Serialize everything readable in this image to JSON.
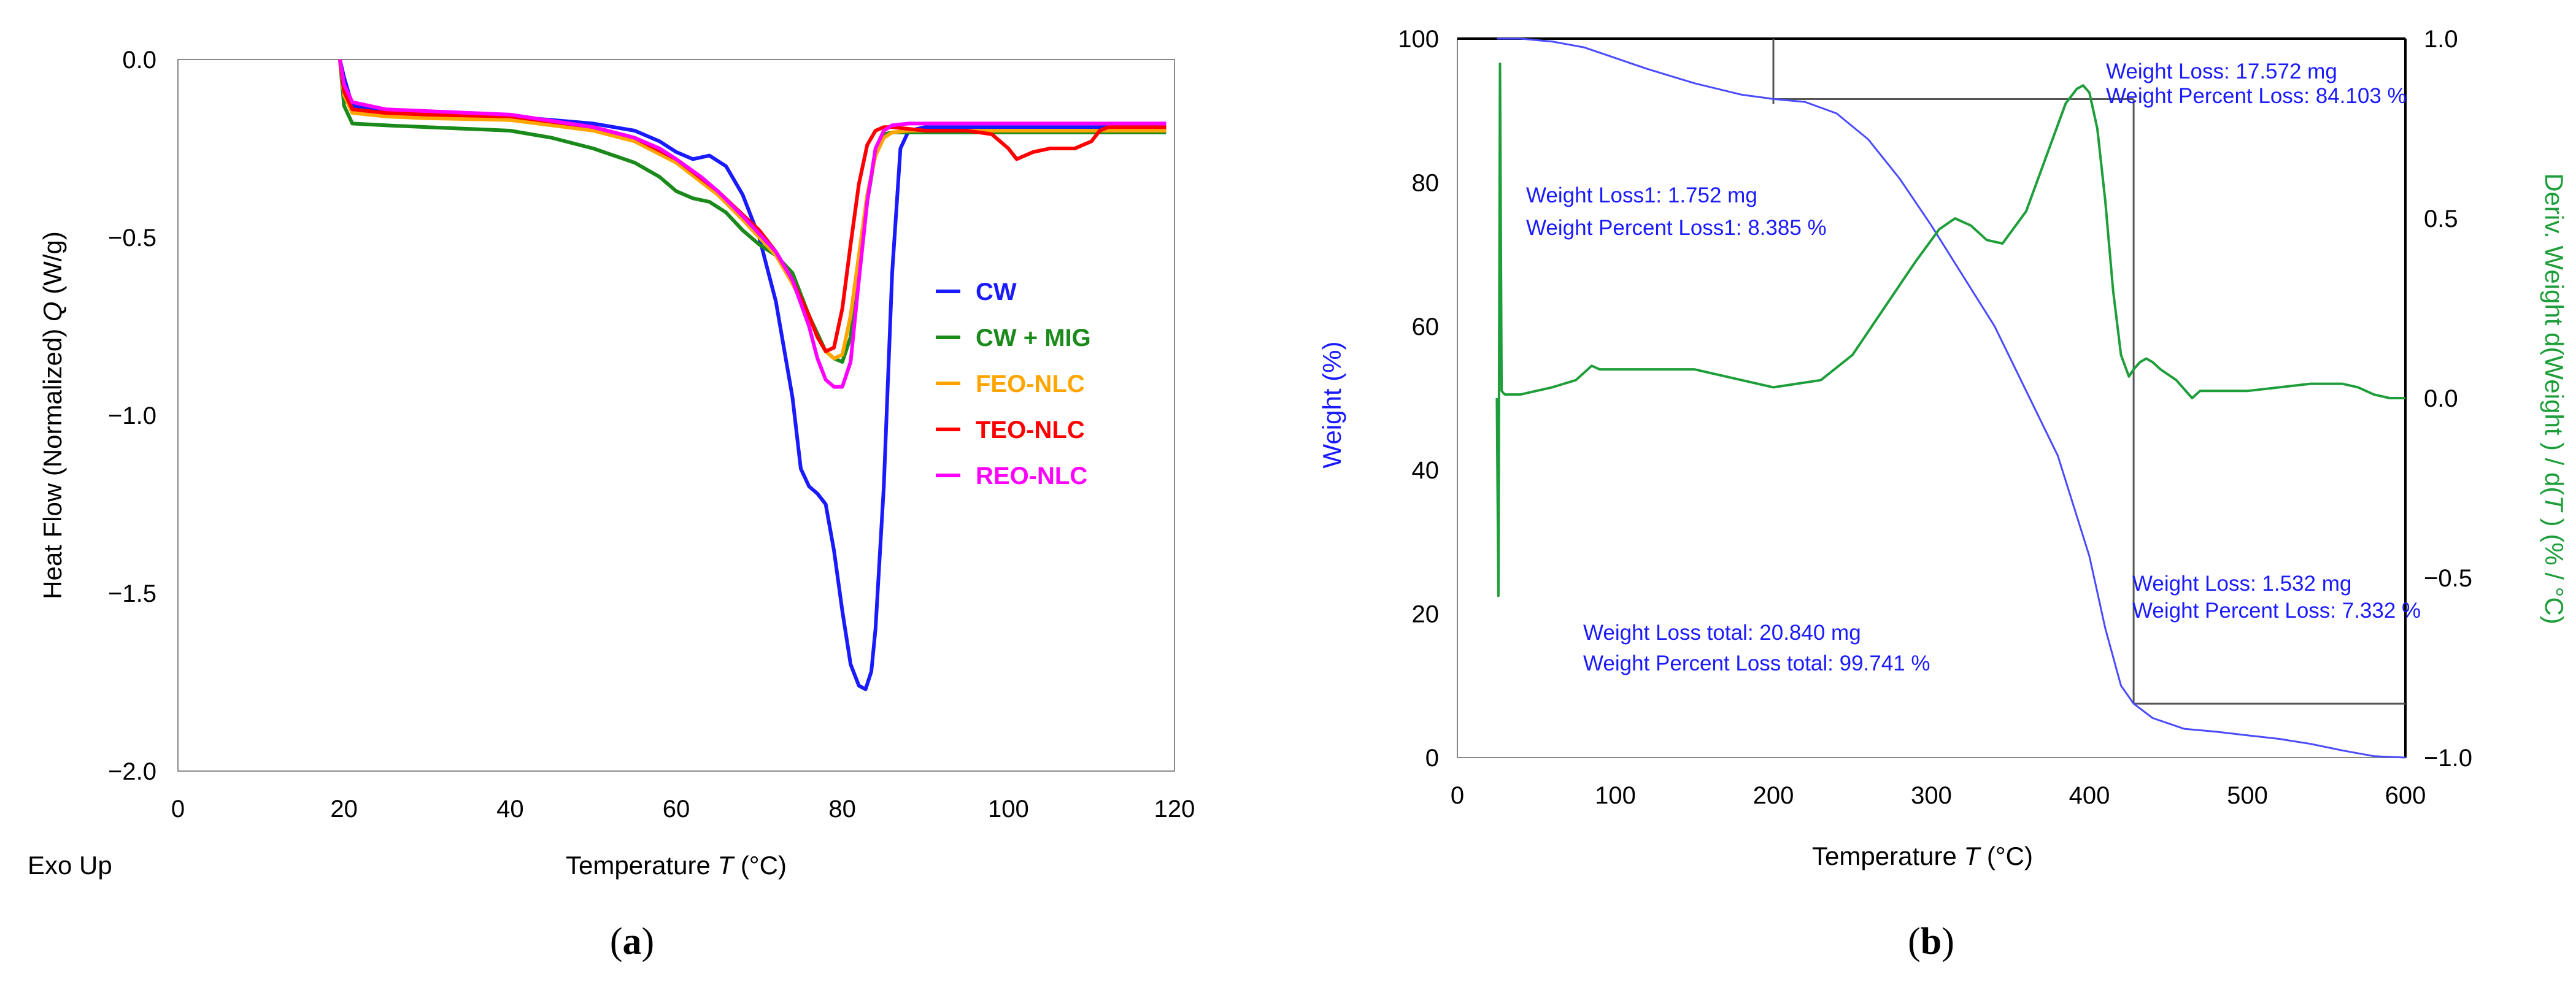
{
  "chart_data": [
    {
      "type": "line",
      "panel_label": "(a)",
      "xlabel": "Temperature T (°C)",
      "ylabel": "Heat Flow (Normalized) Q (W/g)",
      "corner_note": "Exo Up",
      "xlim": [
        0,
        120
      ],
      "ylim": [
        -2.0,
        0.0
      ],
      "xticks": [
        "0",
        "20",
        "40",
        "60",
        "80",
        "100",
        "120"
      ],
      "yticks": [
        "0.0",
        "−0.5",
        "−1.0",
        "−1.5",
        "−2.0"
      ],
      "legend_position": "right",
      "series": [
        {
          "name": "CW",
          "color": "#1a1aff",
          "x": [
            19.5,
            20,
            21,
            25,
            30,
            40,
            50,
            55,
            58,
            60,
            62,
            64,
            66,
            68,
            70,
            72,
            74,
            75,
            76,
            77,
            78,
            79,
            80,
            81,
            82,
            82.8,
            83.5,
            84,
            85,
            86,
            87,
            88,
            90,
            100,
            110,
            119
          ],
          "y": [
            0.0,
            -0.05,
            -0.13,
            -0.15,
            -0.155,
            -0.16,
            -0.18,
            -0.2,
            -0.23,
            -0.26,
            -0.28,
            -0.27,
            -0.3,
            -0.38,
            -0.5,
            -0.68,
            -0.95,
            -1.15,
            -1.2,
            -1.22,
            -1.25,
            -1.38,
            -1.55,
            -1.7,
            -1.76,
            -1.77,
            -1.72,
            -1.6,
            -1.2,
            -0.6,
            -0.25,
            -0.2,
            -0.19,
            -0.19,
            -0.19,
            -0.19
          ]
        },
        {
          "name": "CW + MIG",
          "color": "#1a8a1a",
          "x": [
            19.5,
            20,
            21,
            25,
            30,
            40,
            45,
            50,
            55,
            58,
            60,
            62,
            64,
            66,
            68,
            70,
            72,
            74,
            76,
            78,
            79,
            80,
            81,
            82,
            83,
            84,
            85,
            86,
            88,
            90,
            100,
            110,
            119
          ],
          "y": [
            0.0,
            -0.13,
            -0.18,
            -0.185,
            -0.19,
            -0.2,
            -0.22,
            -0.25,
            -0.29,
            -0.33,
            -0.37,
            -0.39,
            -0.4,
            -0.43,
            -0.48,
            -0.52,
            -0.55,
            -0.6,
            -0.72,
            -0.82,
            -0.84,
            -0.85,
            -0.78,
            -0.6,
            -0.4,
            -0.26,
            -0.21,
            -0.205,
            -0.205,
            -0.205,
            -0.205,
            -0.205,
            -0.205
          ]
        },
        {
          "name": "FEO-NLC",
          "color": "#ffa500",
          "x": [
            19.5,
            20,
            21,
            25,
            30,
            40,
            50,
            55,
            60,
            65,
            68,
            70,
            72,
            74,
            76,
            77,
            78,
            79,
            80,
            81,
            82,
            83,
            84,
            85,
            86,
            88,
            90,
            100,
            110,
            119
          ],
          "y": [
            0.0,
            -0.1,
            -0.15,
            -0.16,
            -0.165,
            -0.17,
            -0.2,
            -0.23,
            -0.29,
            -0.38,
            -0.45,
            -0.5,
            -0.55,
            -0.63,
            -0.72,
            -0.78,
            -0.82,
            -0.84,
            -0.83,
            -0.72,
            -0.55,
            -0.38,
            -0.27,
            -0.22,
            -0.205,
            -0.2,
            -0.2,
            -0.2,
            -0.2,
            -0.2
          ]
        },
        {
          "name": "TEO-NLC",
          "color": "#ff0000",
          "x": [
            19.5,
            20,
            21,
            25,
            30,
            40,
            50,
            55,
            60,
            65,
            70,
            72,
            74,
            76,
            77,
            78,
            79,
            80,
            81,
            82,
            83,
            84,
            85,
            86,
            88,
            90,
            95,
            98,
            100,
            101,
            103,
            105,
            108,
            110,
            111,
            112,
            115,
            119
          ],
          "y": [
            0.0,
            -0.09,
            -0.14,
            -0.15,
            -0.155,
            -0.16,
            -0.19,
            -0.22,
            -0.28,
            -0.37,
            -0.48,
            -0.54,
            -0.62,
            -0.72,
            -0.78,
            -0.82,
            -0.81,
            -0.7,
            -0.52,
            -0.35,
            -0.24,
            -0.2,
            -0.19,
            -0.19,
            -0.195,
            -0.2,
            -0.2,
            -0.21,
            -0.25,
            -0.28,
            -0.26,
            -0.25,
            -0.25,
            -0.23,
            -0.2,
            -0.19,
            -0.19,
            -0.19
          ]
        },
        {
          "name": "REO-NLC",
          "color": "#ff00ff",
          "x": [
            19.5,
            20,
            21,
            25,
            30,
            40,
            50,
            55,
            58,
            60,
            63,
            65,
            68,
            70,
            72,
            74,
            76,
            77,
            78,
            79,
            80,
            81,
            82,
            83,
            84,
            85,
            86,
            88,
            90,
            100,
            110,
            119
          ],
          "y": [
            0.0,
            -0.07,
            -0.12,
            -0.14,
            -0.145,
            -0.155,
            -0.19,
            -0.22,
            -0.25,
            -0.28,
            -0.33,
            -0.37,
            -0.44,
            -0.49,
            -0.54,
            -0.62,
            -0.75,
            -0.84,
            -0.9,
            -0.92,
            -0.92,
            -0.85,
            -0.62,
            -0.4,
            -0.25,
            -0.2,
            -0.185,
            -0.18,
            -0.18,
            -0.18,
            -0.18,
            -0.18
          ]
        }
      ]
    },
    {
      "type": "line",
      "panel_label": "(b)",
      "xlabel": "Temperature T (°C)",
      "ylabel": "Weight (%)",
      "y2label": "Deriv. Weight d(Weight) / d(T) (% / °C)",
      "xlim": [
        0,
        600
      ],
      "ylim": [
        0,
        100
      ],
      "y2lim": [
        -1.0,
        1.0
      ],
      "xticks": [
        "0",
        "100",
        "200",
        "300",
        "400",
        "500",
        "600"
      ],
      "yticks": [
        "0",
        "20",
        "40",
        "60",
        "80",
        "100"
      ],
      "y2ticks": [
        "1.0",
        "0.5",
        "0.0",
        "−0.5",
        "−1.0"
      ],
      "series": [
        {
          "name": "Weight",
          "axis": "left",
          "color": "#4a4aff",
          "x": [
            25,
            40,
            60,
            80,
            100,
            120,
            150,
            180,
            200,
            220,
            240,
            260,
            280,
            300,
            320,
            340,
            360,
            380,
            400,
            410,
            420,
            428,
            440,
            460,
            480,
            500,
            520,
            540,
            560,
            580,
            600
          ],
          "y": [
            100,
            100,
            99.6,
            98.8,
            97.3,
            95.8,
            93.8,
            92.2,
            91.6,
            91.2,
            89.6,
            86,
            80.5,
            74,
            67,
            60,
            51,
            42,
            28,
            18,
            10,
            7.5,
            5.5,
            4,
            3.6,
            3.1,
            2.6,
            1.9,
            1.0,
            0.2,
            0.0
          ]
        },
        {
          "name": "Deriv. Weight",
          "axis": "right",
          "color": "#1e9e3a",
          "x": [
            25,
            26,
            27,
            28,
            30,
            40,
            60,
            75,
            80,
            85,
            90,
            100,
            150,
            200,
            230,
            250,
            270,
            290,
            305,
            315,
            325,
            335,
            345,
            360,
            375,
            385,
            392,
            396,
            400,
            405,
            410,
            415,
            420,
            425,
            428,
            432,
            436,
            440,
            445,
            455,
            465,
            470,
            500,
            540,
            560,
            570,
            580,
            590,
            600
          ],
          "y": [
            0.0,
            -0.55,
            0.93,
            0.02,
            0.01,
            0.01,
            0.03,
            0.05,
            0.07,
            0.09,
            0.08,
            0.08,
            0.08,
            0.03,
            0.05,
            0.12,
            0.25,
            0.38,
            0.47,
            0.5,
            0.48,
            0.44,
            0.43,
            0.52,
            0.7,
            0.82,
            0.86,
            0.87,
            0.85,
            0.75,
            0.55,
            0.3,
            0.12,
            0.06,
            0.08,
            0.1,
            0.11,
            0.1,
            0.08,
            0.05,
            0.0,
            0.02,
            0.02,
            0.04,
            0.04,
            0.03,
            0.01,
            0.0,
            0.0
          ]
        }
      ],
      "annotations": [
        {
          "line1": "Weight Loss1: 1.752 mg",
          "line2": "Weight Percent Loss1: 8.385 %"
        },
        {
          "line1": "Weight Loss: 17.572 mg",
          "line2": "Weight Percent Loss: 84.103 %"
        },
        {
          "line1": "Weight Loss: 1.532 mg",
          "line2": "Weight Percent Loss: 7.332 %"
        },
        {
          "line1": "Weight Loss total: 20.840 mg",
          "line2": "Weight Percent Loss total: 99.741 %"
        }
      ],
      "step_markers": [
        {
          "x_start": 200,
          "x_end": 428,
          "y": 91.6
        },
        {
          "x_start": 428,
          "x_end": 600,
          "y": 7.5
        }
      ]
    }
  ]
}
